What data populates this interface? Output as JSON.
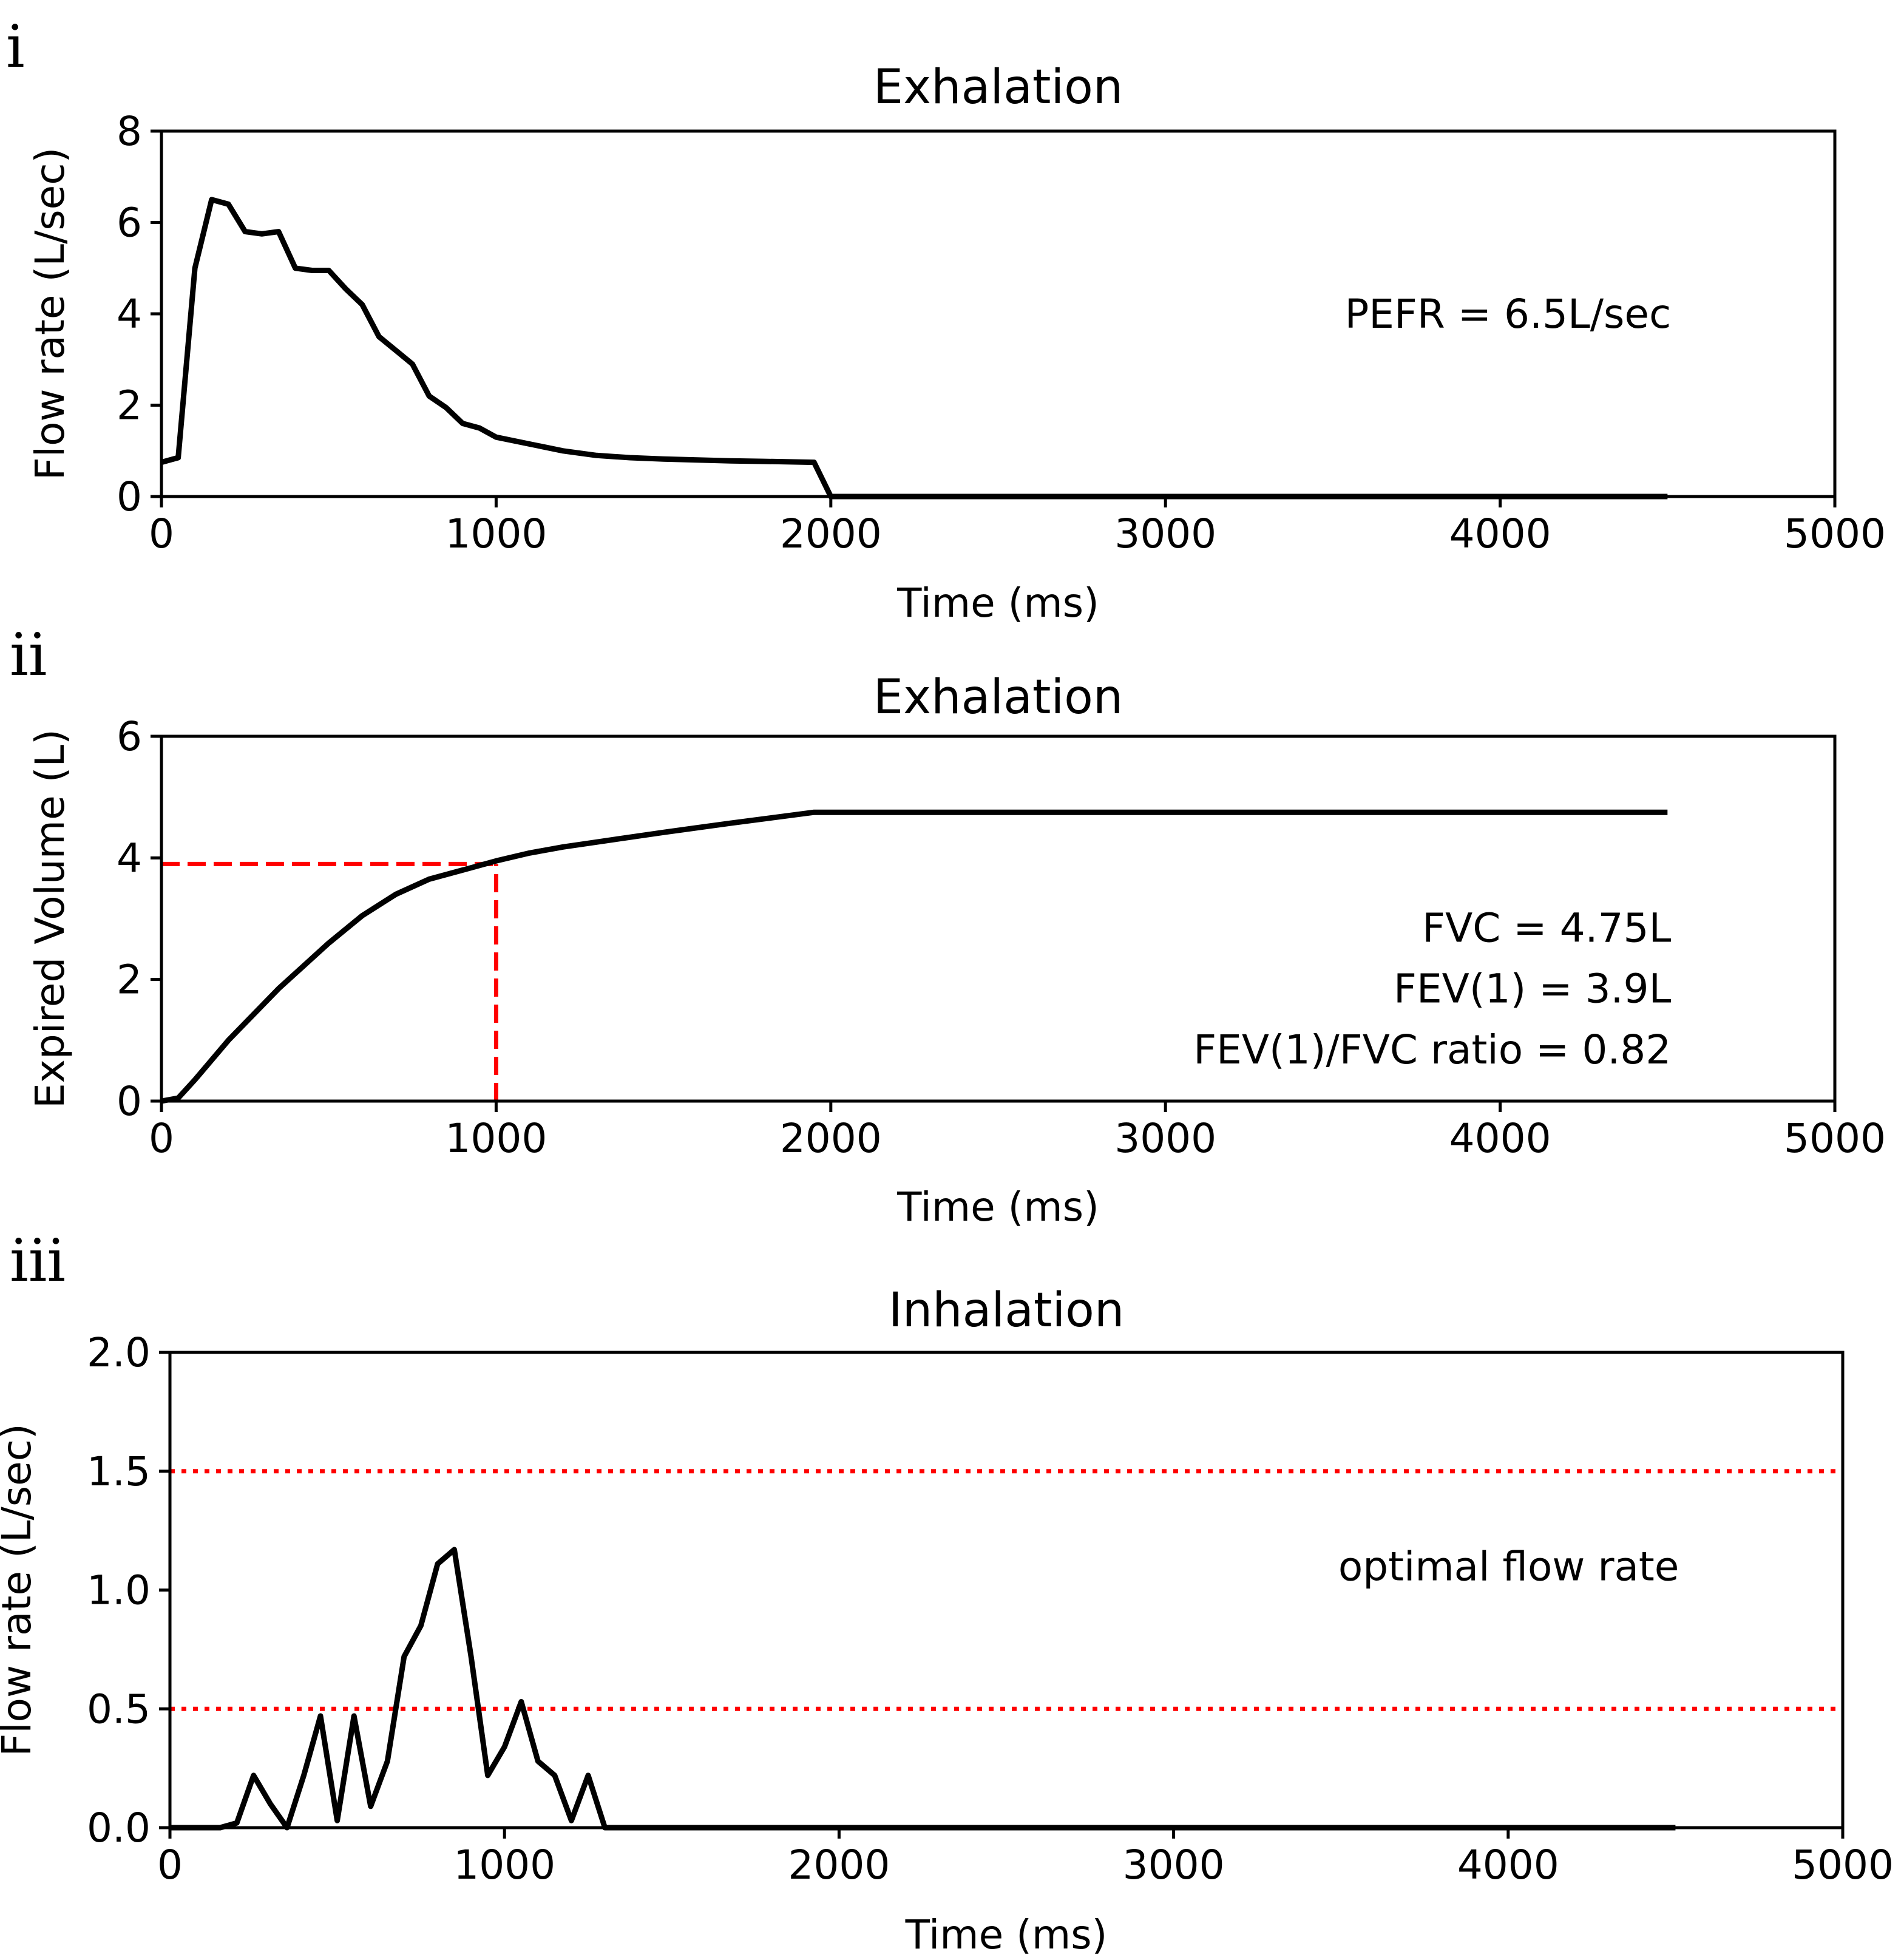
{
  "chart_data": [
    {
      "panel_label": "i",
      "type": "line",
      "title": "Exhalation",
      "xlabel": "Time (ms)",
      "ylabel": "Flow rate (L/sec)",
      "xlim": [
        0,
        5000
      ],
      "ylim": [
        0,
        8
      ],
      "xticks": [
        0,
        1000,
        2000,
        3000,
        4000,
        5000
      ],
      "xtick_labels": [
        "0",
        "1000",
        "2000",
        "3000",
        "4000",
        "5000"
      ],
      "yticks": [
        0,
        2,
        4,
        6,
        8
      ],
      "ytick_labels": [
        "0",
        "2",
        "4",
        "6",
        "8"
      ],
      "series": [
        {
          "name": "flow",
          "color": "#000000",
          "style": "solid",
          "x": [
            0,
            50,
            100,
            150,
            200,
            250,
            300,
            350,
            400,
            450,
            500,
            550,
            600,
            650,
            700,
            750,
            800,
            850,
            900,
            950,
            1000,
            1100,
            1200,
            1300,
            1400,
            1500,
            1600,
            1700,
            1800,
            1950,
            2000,
            2500,
            3000,
            3500,
            4000,
            4500
          ],
          "y": [
            0.75,
            0.85,
            5.0,
            6.5,
            6.4,
            5.8,
            5.75,
            5.8,
            5.0,
            4.95,
            4.95,
            4.55,
            4.2,
            3.5,
            3.2,
            2.9,
            2.2,
            1.95,
            1.6,
            1.5,
            1.3,
            1.15,
            1.0,
            0.9,
            0.85,
            0.82,
            0.8,
            0.78,
            0.77,
            0.75,
            0.0,
            0.0,
            0.0,
            0.0,
            0.0,
            0.0
          ]
        }
      ],
      "annotations": [
        {
          "text": "PEFR = 6.5L/sec",
          "x": 4500,
          "y": 4.0
        }
      ]
    },
    {
      "panel_label": "ii",
      "type": "line",
      "title": "Exhalation",
      "xlabel": "Time (ms)",
      "ylabel": "Expired Volume (L)",
      "xlim": [
        0,
        5000
      ],
      "ylim": [
        0,
        6
      ],
      "xticks": [
        0,
        1000,
        2000,
        3000,
        4000,
        5000
      ],
      "xtick_labels": [
        "0",
        "1000",
        "2000",
        "3000",
        "4000",
        "5000"
      ],
      "yticks": [
        0,
        2,
        4,
        6
      ],
      "ytick_labels": [
        "0",
        "2",
        "4",
        "6"
      ],
      "series": [
        {
          "name": "volume",
          "color": "#000000",
          "style": "solid",
          "x": [
            0,
            50,
            100,
            200,
            350,
            500,
            600,
            700,
            800,
            900,
            1000,
            1100,
            1200,
            1300,
            1500,
            1700,
            1950,
            2500,
            3000,
            3500,
            4000,
            4500
          ],
          "y": [
            0.0,
            0.05,
            0.35,
            1.0,
            1.85,
            2.6,
            3.05,
            3.4,
            3.65,
            3.8,
            3.95,
            4.08,
            4.18,
            4.26,
            4.42,
            4.57,
            4.75,
            4.75,
            4.75,
            4.75,
            4.75,
            4.75
          ]
        }
      ],
      "reference_lines": [
        {
          "orientation": "horizontal",
          "value": 3.9,
          "from": 0,
          "to": 1000,
          "color": "#ff0000",
          "style": "dashed"
        },
        {
          "orientation": "vertical",
          "value": 1000,
          "from": 0,
          "to": 3.9,
          "color": "#ff0000",
          "style": "dashed"
        }
      ],
      "annotations": [
        {
          "text": "FVC = 4.75L",
          "x": 4500,
          "y": 2.85
        },
        {
          "text": "FEV(1) = 3.9L",
          "x": 4500,
          "y": 1.85
        },
        {
          "text": "FEV(1)/FVC ratio = 0.82",
          "x": 4500,
          "y": 0.85
        }
      ]
    },
    {
      "panel_label": "iii",
      "type": "line",
      "title": "Inhalation",
      "xlabel": "Time (ms)",
      "ylabel": "Flow rate (L/sec)",
      "xlim": [
        0,
        5000
      ],
      "ylim": [
        0,
        2.0
      ],
      "xticks": [
        0,
        1000,
        2000,
        3000,
        4000,
        5000
      ],
      "xtick_labels": [
        "0",
        "1000",
        "2000",
        "3000",
        "4000",
        "5000"
      ],
      "yticks": [
        0.0,
        0.5,
        1.0,
        1.5,
        2.0
      ],
      "ytick_labels": [
        "0.0",
        "0.5",
        "1.0",
        "1.5",
        "2.0"
      ],
      "series": [
        {
          "name": "flow",
          "color": "#000000",
          "style": "solid",
          "x": [
            0,
            150,
            200,
            250,
            300,
            350,
            400,
            450,
            500,
            550,
            600,
            650,
            700,
            750,
            800,
            850,
            900,
            950,
            1000,
            1050,
            1100,
            1150,
            1200,
            1250,
            1300,
            2000,
            3000,
            4000,
            4500
          ],
          "y": [
            0.0,
            0.0,
            0.02,
            0.22,
            0.1,
            0.0,
            0.22,
            0.47,
            0.03,
            0.47,
            0.09,
            0.28,
            0.72,
            0.85,
            1.11,
            1.17,
            0.72,
            0.22,
            0.34,
            0.53,
            0.28,
            0.22,
            0.03,
            0.22,
            0.0,
            0.0,
            0.0,
            0.0,
            0.0
          ]
        }
      ],
      "reference_lines": [
        {
          "orientation": "horizontal",
          "value": 1.5,
          "from": 0,
          "to": 5000,
          "color": "#ff0000",
          "style": "dotted"
        },
        {
          "orientation": "horizontal",
          "value": 0.5,
          "from": 0,
          "to": 5000,
          "color": "#ff0000",
          "style": "dotted"
        }
      ],
      "annotations": [
        {
          "text": "optimal flow rate",
          "x": 4500,
          "y": 1.1
        }
      ]
    }
  ]
}
